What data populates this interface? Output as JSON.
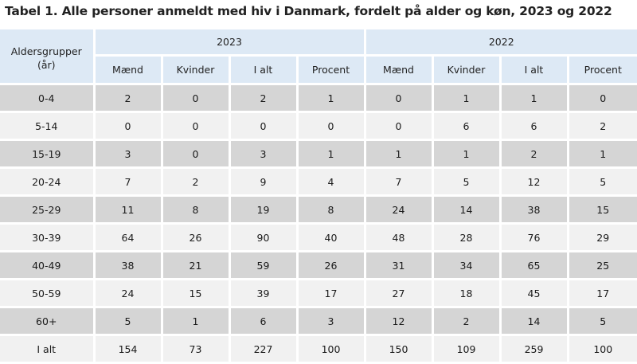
{
  "title": "Tabel 1. Alle personer anmeldt med hiv i Danmark, fordelt på alder og køn, 2023 og 2022",
  "header": {
    "age_group_label": "Aldersgrupper",
    "age_group_unit": "(år)",
    "years": [
      "2023",
      "2022"
    ],
    "columns": [
      "Mænd",
      "Kvinder",
      "I alt",
      "Procent",
      "Mænd",
      "Kvinder",
      "I alt",
      "Procent"
    ]
  },
  "rows": [
    {
      "age": "0-4",
      "values": [
        "2",
        "0",
        "2",
        "1",
        "0",
        "1",
        "1",
        "0"
      ]
    },
    {
      "age": "5-14",
      "values": [
        "0",
        "0",
        "0",
        "0",
        "0",
        "6",
        "6",
        "2"
      ]
    },
    {
      "age": "15-19",
      "values": [
        "3",
        "0",
        "3",
        "1",
        "1",
        "1",
        "2",
        "1"
      ]
    },
    {
      "age": "20-24",
      "values": [
        "7",
        "2",
        "9",
        "4",
        "7",
        "5",
        "12",
        "5"
      ]
    },
    {
      "age": "25-29",
      "values": [
        "11",
        "8",
        "19",
        "8",
        "24",
        "14",
        "38",
        "15"
      ]
    },
    {
      "age": "30-39",
      "values": [
        "64",
        "26",
        "90",
        "40",
        "48",
        "28",
        "76",
        "29"
      ]
    },
    {
      "age": "40-49",
      "values": [
        "38",
        "21",
        "59",
        "26",
        "31",
        "34",
        "65",
        "25"
      ]
    },
    {
      "age": "50-59",
      "values": [
        "24",
        "15",
        "39",
        "17",
        "27",
        "18",
        "45",
        "17"
      ]
    },
    {
      "age": "60+",
      "values": [
        "5",
        "1",
        "6",
        "3",
        "12",
        "2",
        "14",
        "5"
      ]
    },
    {
      "age": "I alt",
      "values": [
        "154",
        "73",
        "227",
        "100",
        "150",
        "109",
        "259",
        "100"
      ]
    }
  ],
  "colors": {
    "header_bg": "#dde9f5",
    "row_dark": "#d5d5d5",
    "row_light": "#f1f1f1"
  }
}
